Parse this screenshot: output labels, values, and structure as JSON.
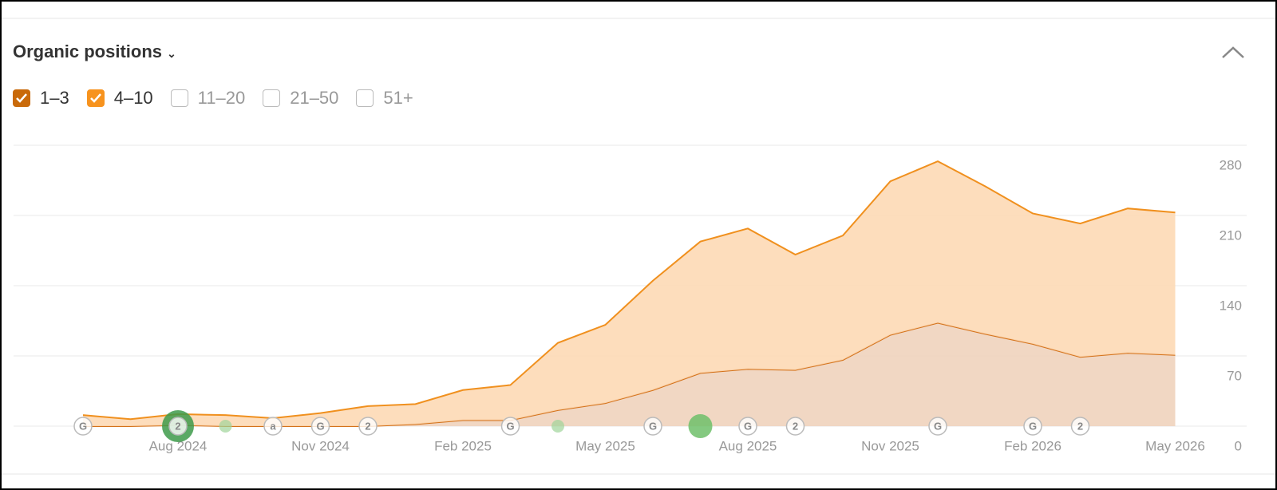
{
  "header": {
    "title": "Organic positions"
  },
  "filters": {
    "unchecked": [
      "11–20",
      "21–50",
      "51+"
    ]
  },
  "chart_data": {
    "type": "stacked-area",
    "categories": [
      null,
      null,
      "Aug 2024",
      null,
      null,
      "Nov 2024",
      null,
      null,
      "Feb 2025",
      null,
      null,
      "May 2025",
      null,
      null,
      "Aug 2025",
      null,
      null,
      "Nov 2025",
      null,
      null,
      "Feb 2026",
      null,
      null,
      "May 2026"
    ],
    "series": [
      {
        "name": "1–3",
        "color": "#c96a0a",
        "fill": "#f0d3bd",
        "line": "#d4721a",
        "values": [
          0,
          0,
          1,
          0,
          0,
          0,
          0,
          2,
          6,
          6,
          16,
          23,
          36,
          53,
          57,
          56,
          66,
          91,
          103,
          92,
          82,
          69,
          73,
          71
        ]
      },
      {
        "name": "4–10",
        "color": "#f7931e",
        "fill": "#fdd9b5",
        "line": "#f0901e",
        "values": [
          11,
          7,
          11,
          11,
          8,
          13,
          20,
          20,
          30,
          35,
          67,
          78,
          109,
          131,
          140,
          115,
          124,
          153,
          161,
          147,
          130,
          133,
          144,
          142
        ]
      }
    ],
    "ylim": [
      0,
      280
    ],
    "yticks": [
      0,
      70,
      140,
      210,
      280
    ],
    "grid": true,
    "events": [
      "G",
      "2",
      "a",
      "G",
      "2",
      "G",
      "G",
      "G",
      "2",
      "G",
      "G",
      "2"
    ]
  }
}
